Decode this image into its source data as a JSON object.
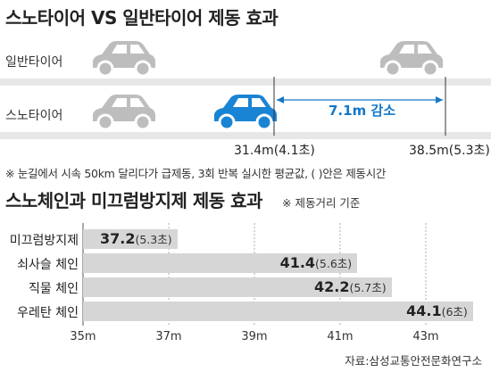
{
  "top": {
    "title": "스노타이어 VS 일반타이어 제동 효과",
    "lanes": [
      {
        "label": "일반타이어"
      },
      {
        "label": "스노타이어"
      }
    ],
    "markers": [
      {
        "label": "31.4m(4.1초)"
      },
      {
        "label": "38.5m(5.3초)"
      }
    ],
    "difference_label": "7.1m 감소",
    "footnote": "※ 눈길에서 시속 50km 달리다가 급제동, 3회 반복 실시한 평균값, ( )안은 제동시간",
    "colors": {
      "car_gray": "#bdbdbd",
      "car_blue": "#1a84d4",
      "accent": "#1478c8",
      "road": "#e7e7e7"
    },
    "icons": [
      "car-icon"
    ]
  },
  "chart_data": {
    "type": "bar",
    "title": "스노체인과 미끄럼방지제 제동 효과",
    "subtitle": "※ 제동거리 기준",
    "categories": [
      "미끄럼방지제",
      "쇠사슬 체인",
      "직물 체인",
      "우레탄 체인"
    ],
    "values": [
      37.2,
      41.4,
      42.2,
      44.1
    ],
    "value_labels": [
      "37.2",
      "41.4",
      "42.2",
      "44.1"
    ],
    "time_labels": [
      "(5.3초)",
      "(5.6초)",
      "(5.7초)",
      "(6초)"
    ],
    "xlim": [
      35,
      45
    ],
    "ticks": [
      35,
      37,
      39,
      41,
      43
    ],
    "tick_labels": [
      "35m",
      "37m",
      "39m",
      "41m",
      "43m"
    ],
    "grid": true,
    "bar_color": "#d6d6d6",
    "source": "자료:삼성교통안전문화연구소"
  }
}
